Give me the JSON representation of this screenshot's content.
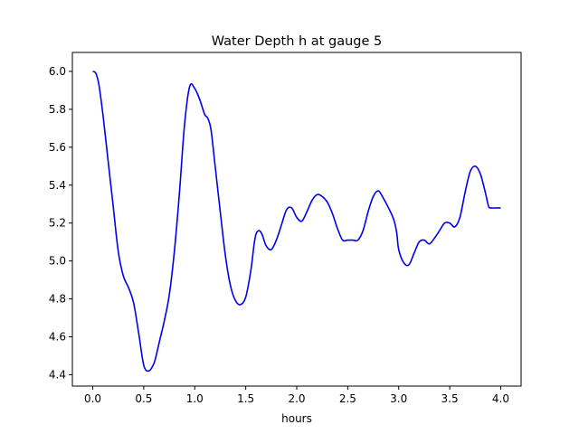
{
  "chart_data": {
    "type": "line",
    "title": "Water Depth h at gauge 5",
    "xlabel": "hours",
    "ylabel": "",
    "xlim": [
      -0.2,
      4.2
    ],
    "ylim": [
      4.34,
      6.1
    ],
    "xticks": [
      0.0,
      0.5,
      1.0,
      1.5,
      2.0,
      2.5,
      3.0,
      3.5,
      4.0
    ],
    "xtick_labels": [
      "0.0",
      "0.5",
      "1.0",
      "1.5",
      "2.0",
      "2.5",
      "3.0",
      "3.5",
      "4.0"
    ],
    "yticks": [
      4.4,
      4.6,
      4.8,
      5.0,
      5.2,
      5.4,
      5.6,
      5.8,
      6.0
    ],
    "ytick_labels": [
      "4.4",
      "4.6",
      "4.8",
      "5.0",
      "5.2",
      "5.4",
      "5.6",
      "5.8",
      "6.0"
    ],
    "grid": false,
    "legend": "none",
    "series": [
      {
        "color": "#0000ee",
        "x": [
          0.0,
          0.03,
          0.06,
          0.1,
          0.15,
          0.2,
          0.25,
          0.3,
          0.35,
          0.4,
          0.45,
          0.5,
          0.55,
          0.6,
          0.63,
          0.66,
          0.7,
          0.75,
          0.8,
          0.85,
          0.9,
          0.95,
          1.0,
          1.05,
          1.08,
          1.1,
          1.13,
          1.16,
          1.2,
          1.25,
          1.3,
          1.35,
          1.4,
          1.45,
          1.5,
          1.55,
          1.58,
          1.6,
          1.63,
          1.66,
          1.7,
          1.75,
          1.8,
          1.85,
          1.9,
          1.95,
          2.0,
          2.05,
          2.1,
          2.15,
          2.2,
          2.25,
          2.3,
          2.35,
          2.4,
          2.45,
          2.5,
          2.55,
          2.6,
          2.65,
          2.7,
          2.75,
          2.8,
          2.85,
          2.9,
          2.95,
          2.98,
          3.0,
          3.05,
          3.1,
          3.15,
          3.2,
          3.25,
          3.3,
          3.35,
          3.4,
          3.45,
          3.5,
          3.55,
          3.6,
          3.65,
          3.7,
          3.75,
          3.8,
          3.85,
          3.88,
          3.9,
          3.95,
          3.98,
          4.0
        ],
        "values": [
          6.0,
          5.99,
          5.93,
          5.77,
          5.53,
          5.29,
          5.05,
          4.92,
          4.86,
          4.78,
          4.62,
          4.45,
          4.42,
          4.46,
          4.52,
          4.59,
          4.68,
          4.82,
          5.05,
          5.36,
          5.72,
          5.92,
          5.91,
          5.85,
          5.8,
          5.77,
          5.75,
          5.69,
          5.5,
          5.26,
          5.03,
          4.87,
          4.79,
          4.77,
          4.81,
          4.95,
          5.08,
          5.14,
          5.16,
          5.14,
          5.08,
          5.06,
          5.11,
          5.19,
          5.27,
          5.28,
          5.23,
          5.21,
          5.26,
          5.32,
          5.35,
          5.34,
          5.31,
          5.25,
          5.17,
          5.11,
          5.11,
          5.11,
          5.11,
          5.16,
          5.26,
          5.34,
          5.37,
          5.33,
          5.28,
          5.22,
          5.15,
          5.06,
          4.99,
          4.98,
          5.04,
          5.1,
          5.11,
          5.09,
          5.12,
          5.16,
          5.2,
          5.2,
          5.18,
          5.23,
          5.36,
          5.47,
          5.5,
          5.46,
          5.36,
          5.29,
          5.28,
          5.28,
          5.28,
          5.28
        ]
      }
    ]
  }
}
